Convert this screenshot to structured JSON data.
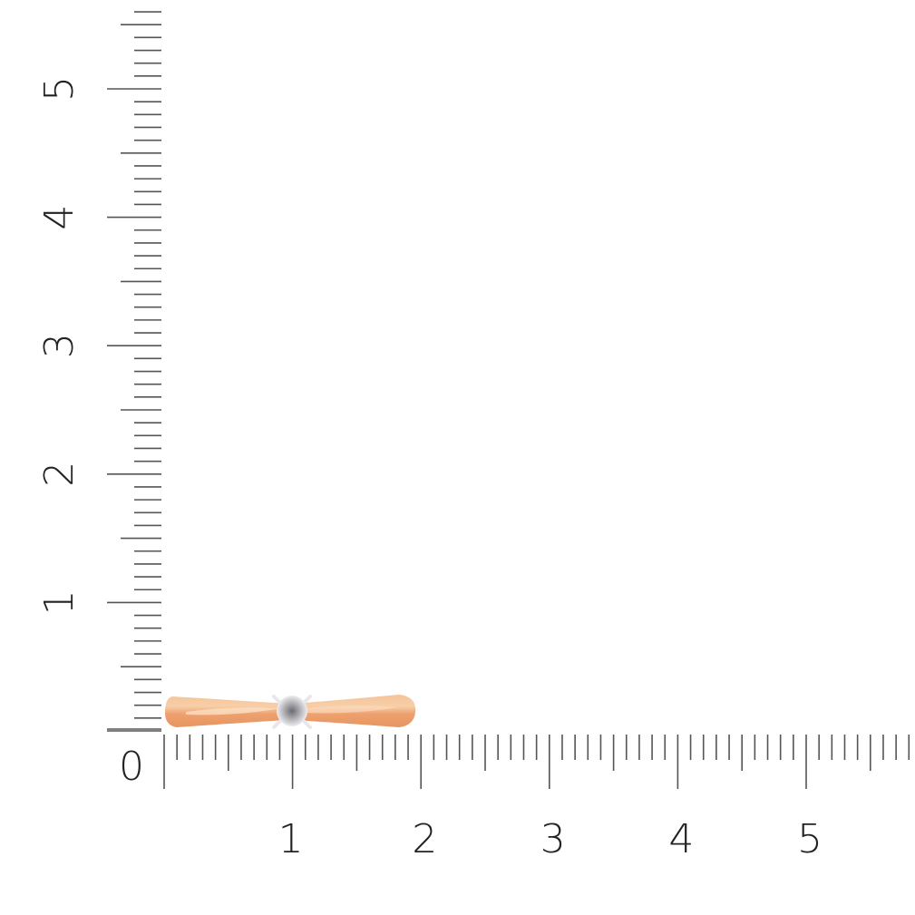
{
  "ruler": {
    "unit_labels_x": [
      "1",
      "2",
      "3",
      "4",
      "5"
    ],
    "unit_labels_y": [
      "1",
      "2",
      "3",
      "4",
      "5"
    ],
    "origin_label": "0",
    "subdivisions_per_unit": 10,
    "tick_color": "#555555"
  },
  "product": {
    "icon": "ring-with-diamond",
    "metal_color": "#f0a878",
    "stone_color": "#c8c8cc",
    "prong_color": "#e8e8ec"
  }
}
